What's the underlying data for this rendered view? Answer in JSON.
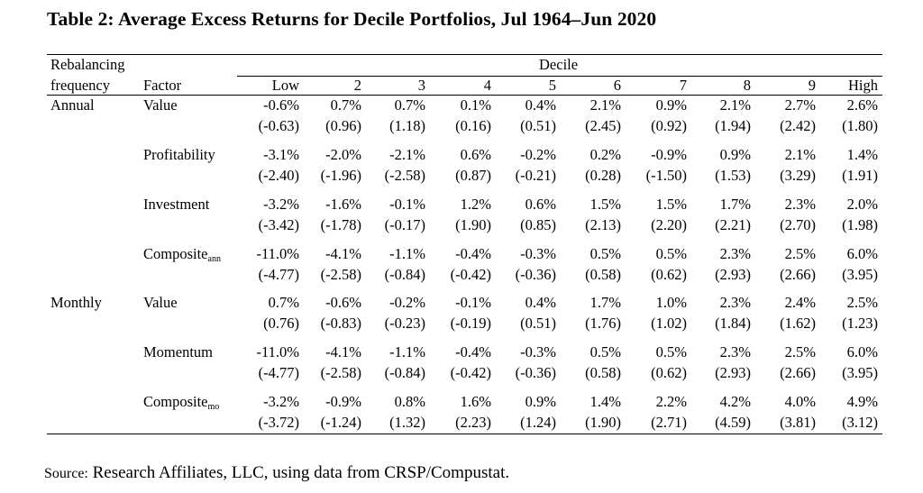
{
  "title": "Table 2: Average Excess Returns for Decile Portfolios, Jul 1964–Jun 2020",
  "headers": {
    "rebalancing_line1": "Rebalancing",
    "rebalancing_line2": "frequency",
    "factor": "Factor",
    "decile": "Decile",
    "columns": [
      "Low",
      "2",
      "3",
      "4",
      "5",
      "6",
      "7",
      "8",
      "9",
      "High"
    ]
  },
  "rows": [
    {
      "frequency": "Annual",
      "factor": "Value",
      "factor_sub": "",
      "returns": [
        "-0.6%",
        "0.7%",
        "0.7%",
        "0.1%",
        "0.4%",
        "2.1%",
        "0.9%",
        "2.1%",
        "2.7%",
        "2.6%"
      ],
      "tstats": [
        "(-0.63)",
        "(0.96)",
        "(1.18)",
        "(0.16)",
        "(0.51)",
        "(2.45)",
        "(0.92)",
        "(1.94)",
        "(2.42)",
        "(1.80)"
      ]
    },
    {
      "frequency": "",
      "factor": "Profitability",
      "factor_sub": "",
      "returns": [
        "-3.1%",
        "-2.0%",
        "-2.1%",
        "0.6%",
        "-0.2%",
        "0.2%",
        "-0.9%",
        "0.9%",
        "2.1%",
        "1.4%"
      ],
      "tstats": [
        "(-2.40)",
        "(-1.96)",
        "(-2.58)",
        "(0.87)",
        "(-0.21)",
        "(0.28)",
        "(-1.50)",
        "(1.53)",
        "(3.29)",
        "(1.91)"
      ]
    },
    {
      "frequency": "",
      "factor": "Investment",
      "factor_sub": "",
      "returns": [
        "-3.2%",
        "-1.6%",
        "-0.1%",
        "1.2%",
        "0.6%",
        "1.5%",
        "1.5%",
        "1.7%",
        "2.3%",
        "2.0%"
      ],
      "tstats": [
        "(-3.42)",
        "(-1.78)",
        "(-0.17)",
        "(1.90)",
        "(0.85)",
        "(2.13)",
        "(2.20)",
        "(2.21)",
        "(2.70)",
        "(1.98)"
      ]
    },
    {
      "frequency": "",
      "factor": "Composite",
      "factor_sub": "ann",
      "returns": [
        "-11.0%",
        "-4.1%",
        "-1.1%",
        "-0.4%",
        "-0.3%",
        "0.5%",
        "0.5%",
        "2.3%",
        "2.5%",
        "6.0%"
      ],
      "tstats": [
        "(-4.77)",
        "(-2.58)",
        "(-0.84)",
        "(-0.42)",
        "(-0.36)",
        "(0.58)",
        "(0.62)",
        "(2.93)",
        "(2.66)",
        "(3.95)"
      ]
    },
    {
      "frequency": "Monthly",
      "factor": "Value",
      "factor_sub": "",
      "returns": [
        "0.7%",
        "-0.6%",
        "-0.2%",
        "-0.1%",
        "0.4%",
        "1.7%",
        "1.0%",
        "2.3%",
        "2.4%",
        "2.5%"
      ],
      "tstats": [
        "(0.76)",
        "(-0.83)",
        "(-0.23)",
        "(-0.19)",
        "(0.51)",
        "(1.76)",
        "(1.02)",
        "(1.84)",
        "(1.62)",
        "(1.23)"
      ]
    },
    {
      "frequency": "",
      "factor": "Momentum",
      "factor_sub": "",
      "returns": [
        "-11.0%",
        "-4.1%",
        "-1.1%",
        "-0.4%",
        "-0.3%",
        "0.5%",
        "0.5%",
        "2.3%",
        "2.5%",
        "6.0%"
      ],
      "tstats": [
        "(-4.77)",
        "(-2.58)",
        "(-0.84)",
        "(-0.42)",
        "(-0.36)",
        "(0.58)",
        "(0.62)",
        "(2.93)",
        "(2.66)",
        "(3.95)"
      ]
    },
    {
      "frequency": "",
      "factor": "Composite",
      "factor_sub": "mo",
      "returns": [
        "-3.2%",
        "-0.9%",
        "0.8%",
        "1.6%",
        "0.9%",
        "1.4%",
        "2.2%",
        "4.2%",
        "4.0%",
        "4.9%"
      ],
      "tstats": [
        "(-3.72)",
        "(-1.24)",
        "(1.32)",
        "(2.23)",
        "(1.24)",
        "(1.90)",
        "(2.71)",
        "(4.59)",
        "(3.81)",
        "(3.12)"
      ]
    }
  ],
  "source": {
    "label": "Source:",
    "text": "Research Affiliates, LLC, using data from CRSP/Compustat."
  }
}
